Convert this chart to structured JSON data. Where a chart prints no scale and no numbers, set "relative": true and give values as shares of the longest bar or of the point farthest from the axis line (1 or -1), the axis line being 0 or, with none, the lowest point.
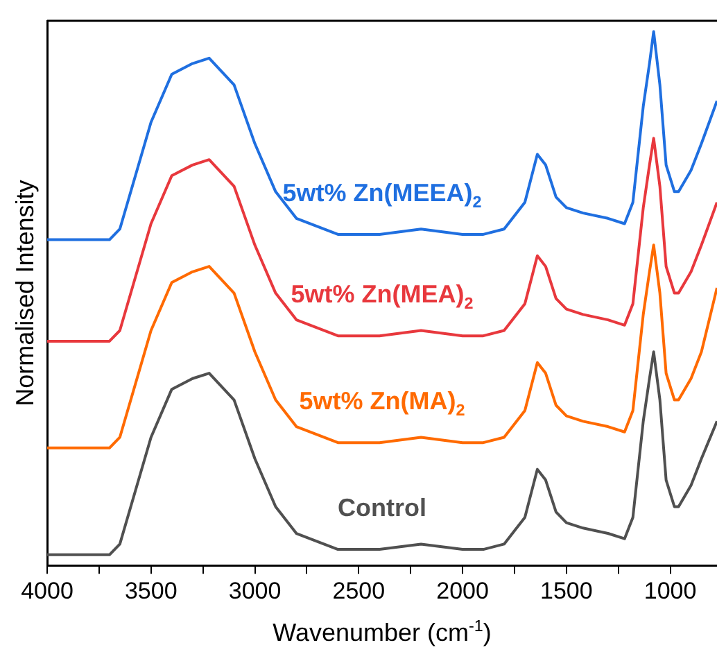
{
  "chart_data": {
    "type": "line",
    "relative": true,
    "xlabel": "Wavenumber (cm$^{-1}$)",
    "ylabel": "Normalised Intensity",
    "legend": false,
    "grid": false,
    "x": [
      4000,
      3700,
      3650,
      3500,
      3400,
      3300,
      3220,
      3100,
      3000,
      2900,
      2800,
      2600,
      2400,
      2200,
      2000,
      1900,
      1800,
      1700,
      1640,
      1600,
      1550,
      1500,
      1420,
      1300,
      1220,
      1180,
      1130,
      1100,
      1080,
      1050,
      1020,
      980,
      960,
      900,
      850,
      775
    ],
    "xlim": [
      4000,
      775
    ],
    "xticks": [
      4000,
      {
        "value": 3750,
        "label": null
      },
      3500,
      {
        "value": 3250,
        "label": null
      },
      3000,
      {
        "value": 2750,
        "label": null
      },
      2500,
      {
        "value": 2250,
        "label": null
      },
      2000,
      {
        "value": 1750,
        "label": null
      },
      1500,
      {
        "value": 1250,
        "label": null
      },
      1000
    ],
    "series": [
      {
        "name": "Control",
        "color": "#505050",
        "values": [
          0.02,
          0.02,
          0.04,
          0.24,
          0.33,
          0.35,
          0.36,
          0.31,
          0.2,
          0.11,
          0.06,
          0.03,
          0.03,
          0.04,
          0.03,
          0.03,
          0.04,
          0.09,
          0.18,
          0.16,
          0.1,
          0.08,
          0.07,
          0.06,
          0.05,
          0.09,
          0.27,
          0.35,
          0.4,
          0.31,
          0.16,
          0.11,
          0.11,
          0.15,
          0.2,
          0.27
        ]
      },
      {
        "name": "5wt% Zn(MA)$_{2}$",
        "color": "#ff6a00",
        "values": [
          0.22,
          0.22,
          0.24,
          0.44,
          0.53,
          0.55,
          0.56,
          0.51,
          0.4,
          0.31,
          0.26,
          0.23,
          0.23,
          0.24,
          0.23,
          0.23,
          0.24,
          0.29,
          0.38,
          0.36,
          0.3,
          0.28,
          0.27,
          0.26,
          0.25,
          0.29,
          0.47,
          0.55,
          0.6,
          0.51,
          0.36,
          0.31,
          0.31,
          0.35,
          0.4,
          0.52
        ]
      },
      {
        "name": "5wt% Zn(MEA)$_{2}$",
        "color": "#e8383d",
        "values": [
          0.42,
          0.42,
          0.44,
          0.64,
          0.73,
          0.75,
          0.76,
          0.71,
          0.6,
          0.51,
          0.46,
          0.43,
          0.43,
          0.44,
          0.43,
          0.43,
          0.44,
          0.49,
          0.58,
          0.56,
          0.5,
          0.48,
          0.47,
          0.46,
          0.45,
          0.49,
          0.67,
          0.75,
          0.8,
          0.71,
          0.56,
          0.51,
          0.51,
          0.55,
          0.6,
          0.68
        ]
      },
      {
        "name": "5wt% Zn(MEEA)$_{2}$",
        "color": "#1f6fe0",
        "values": [
          0.61,
          0.61,
          0.63,
          0.83,
          0.92,
          0.94,
          0.95,
          0.9,
          0.79,
          0.7,
          0.65,
          0.62,
          0.62,
          0.63,
          0.62,
          0.62,
          0.63,
          0.68,
          0.77,
          0.75,
          0.69,
          0.67,
          0.66,
          0.65,
          0.64,
          0.68,
          0.86,
          0.94,
          1.0,
          0.9,
          0.75,
          0.7,
          0.7,
          0.74,
          0.79,
          0.87
        ]
      }
    ]
  }
}
